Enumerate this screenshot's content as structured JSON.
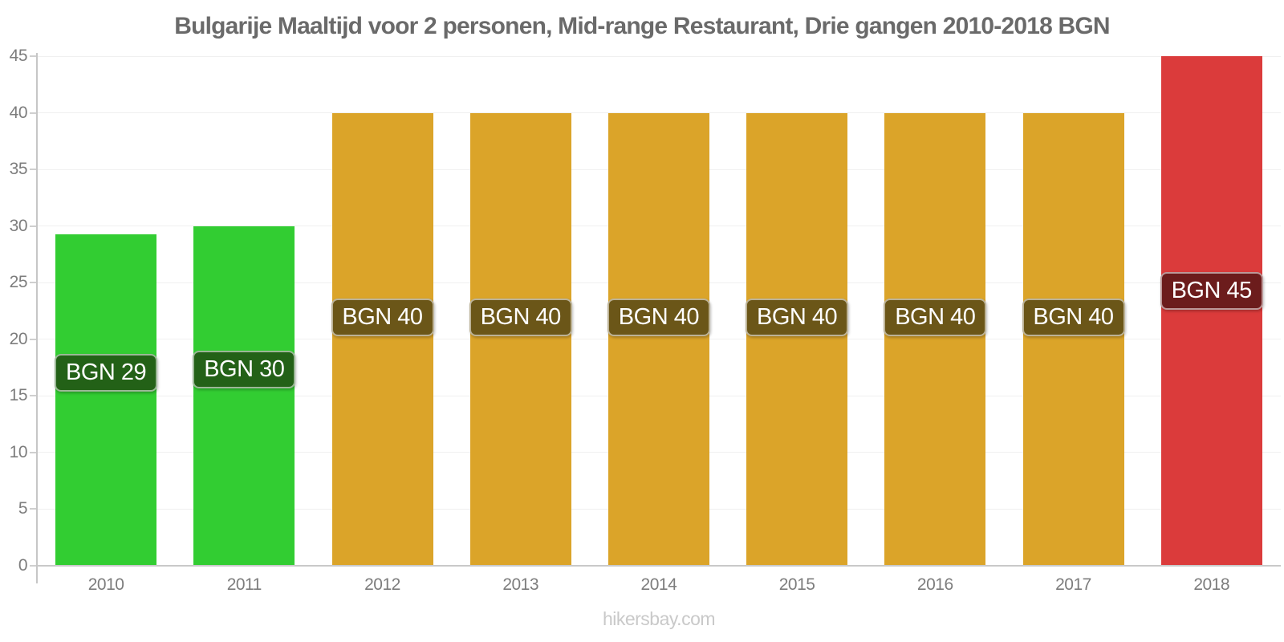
{
  "title": "Bulgarije Maaltijd voor 2 personen, Mid-range Restaurant, Drie gangen 2010-2018 BGN",
  "footer": "hikersbay.com",
  "chart_data": {
    "type": "bar",
    "title": "Bulgarije Maaltijd voor 2 personen, Mid-range Restaurant, Drie gangen 2010-2018 BGN",
    "currency": "BGN",
    "categories": [
      "2010",
      "2011",
      "2012",
      "2013",
      "2014",
      "2015",
      "2016",
      "2017",
      "2018"
    ],
    "values": [
      29.3,
      30,
      40,
      40,
      40,
      40,
      40,
      40,
      45
    ],
    "bar_labels": [
      "BGN 29",
      "BGN 30",
      "BGN 40",
      "BGN 40",
      "BGN 40",
      "BGN 40",
      "BGN 40",
      "BGN 40",
      "BGN 45"
    ],
    "bar_colors": [
      "#32CD32",
      "#32CD32",
      "#DBA429",
      "#DBA429",
      "#DBA429",
      "#DBA429",
      "#DBA429",
      "#DBA429",
      "#DB3B3B"
    ],
    "label_bg_colors": [
      "#236117",
      "#236117",
      "#6B5618",
      "#6B5618",
      "#6B5618",
      "#6B5618",
      "#6B5618",
      "#6B5618",
      "#6C1C1C"
    ],
    "xlabel": "",
    "ylabel": "",
    "ylim": [
      0,
      45
    ],
    "yticks": [
      0,
      5,
      10,
      15,
      20,
      25,
      30,
      35,
      40,
      45
    ],
    "grid": "horizontal",
    "legend": "none"
  }
}
